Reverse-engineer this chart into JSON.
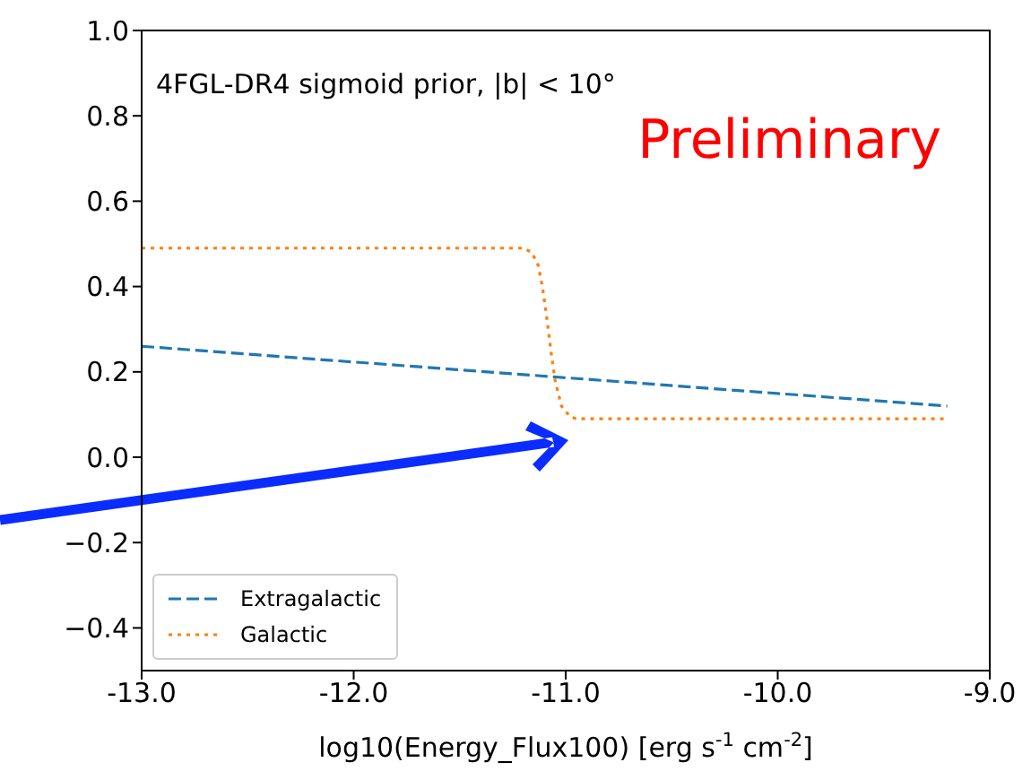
{
  "chart_data": {
    "type": "line",
    "xlabel": "log10(Energy_Flux100) [erg s$^{-1}$ cm$^{-2}$]",
    "annotations": [
      "4FGL-DR4 sigmoid prior, |b| < 10°",
      "Preliminary"
    ],
    "series": [
      {
        "name": "Extragalactic",
        "color": "#1f77b4",
        "line_style": "dashed",
        "x": [
          -13,
          -9.2
        ],
        "values": [
          0.26,
          0.12
        ]
      },
      {
        "name": "Galactic",
        "color": "#ff7f0e",
        "line_style": "dotted",
        "x": [
          -13,
          -11.2,
          -11.16,
          -11.13,
          -11.11,
          -11.09,
          -11.07,
          -11.05,
          -11.02,
          -10.98,
          -10.95,
          -9.2
        ],
        "values": [
          0.49,
          0.49,
          0.48,
          0.45,
          0.4,
          0.33,
          0.25,
          0.18,
          0.12,
          0.095,
          0.09,
          0.09
        ]
      }
    ],
    "xlim": [
      -13,
      -9
    ],
    "xticks": [
      {
        "value": -13,
        "label": "-13.0"
      },
      {
        "value": -12,
        "label": "-12.0"
      },
      {
        "value": -11,
        "label": "-11.0"
      },
      {
        "value": -10,
        "label": "-10.0"
      },
      {
        "value": -9,
        "label": "-9.0"
      }
    ],
    "ylim": [
      -0.5,
      1.0
    ],
    "yticks": [
      {
        "value": -0.4,
        "label": "−0.4"
      },
      {
        "value": -0.2,
        "label": "−0.2"
      },
      {
        "value": 0,
        "label": "0.0"
      },
      {
        "value": 0.2,
        "label": "0.2"
      },
      {
        "value": 0.4,
        "label": "0.4"
      },
      {
        "value": 0.6,
        "label": "0.6"
      },
      {
        "value": 0.8,
        "label": "0.8"
      },
      {
        "value": 1.0,
        "label": "1.0"
      }
    ],
    "grid": false,
    "legend": "bottom left",
    "marker": "none"
  }
}
